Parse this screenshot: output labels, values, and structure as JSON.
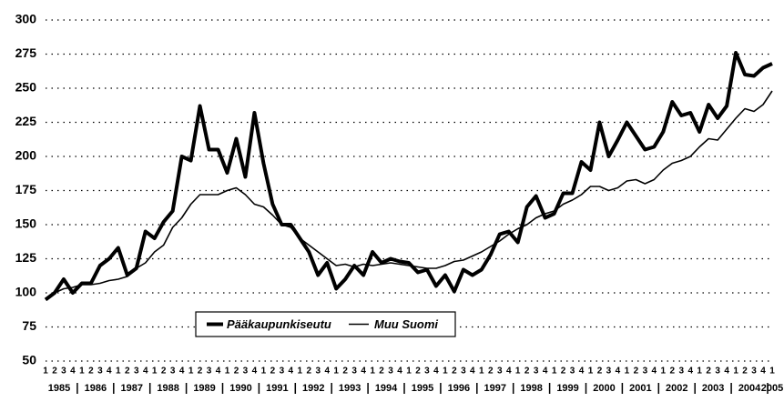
{
  "chart_data": {
    "type": "line",
    "categories": [
      "1",
      "2",
      "3",
      "4",
      "1",
      "2",
      "3",
      "4",
      "1",
      "2",
      "3",
      "4",
      "1",
      "2",
      "3",
      "4",
      "1",
      "2",
      "3",
      "4",
      "1",
      "2",
      "3",
      "4",
      "1",
      "2",
      "3",
      "4",
      "1",
      "2",
      "3",
      "4",
      "1",
      "2",
      "3",
      "4",
      "1",
      "2",
      "3",
      "4",
      "1",
      "2",
      "3",
      "4",
      "1",
      "2",
      "3",
      "4",
      "1",
      "2",
      "3",
      "4",
      "1",
      "2",
      "3",
      "4",
      "1",
      "2",
      "3",
      "4",
      "1",
      "2",
      "3",
      "4",
      "1",
      "2",
      "3",
      "4",
      "1",
      "2",
      "3",
      "4",
      "1",
      "2",
      "3",
      "4",
      "1",
      "2",
      "3",
      "4",
      "1"
    ],
    "years": [
      "1985",
      "1986",
      "1987",
      "1988",
      "1989",
      "1990",
      "1991",
      "1992",
      "1993",
      "1994",
      "1995",
      "1996",
      "1997",
      "1998",
      "1999",
      "2000",
      "2001",
      "2002",
      "2003",
      "2004",
      "2005"
    ],
    "series": [
      {
        "name": "Pääkaupunkiseutu",
        "color": "#000000",
        "values": [
          95,
          100,
          110,
          100,
          107,
          107,
          120,
          125,
          133,
          113,
          118,
          145,
          140,
          152,
          160,
          200,
          197,
          237,
          205,
          205,
          188,
          213,
          185,
          232,
          195,
          165,
          150,
          150,
          140,
          130,
          113,
          122,
          103,
          110,
          120,
          113,
          130,
          122,
          125,
          123,
          122,
          115,
          117,
          105,
          113,
          101,
          117,
          113,
          117,
          128,
          143,
          145,
          137,
          163,
          171,
          155,
          158,
          173,
          173,
          196,
          190,
          225,
          200,
          212,
          225,
          215,
          205,
          207,
          218,
          240,
          230,
          232,
          218,
          238,
          228,
          237,
          276,
          260,
          259,
          265,
          268
        ]
      },
      {
        "name": "Muu Suomi",
        "color": "#000000",
        "values": [
          96,
          100,
          103,
          104,
          106,
          106,
          107,
          109,
          110,
          112,
          118,
          122,
          130,
          135,
          148,
          155,
          165,
          172,
          172,
          172,
          175,
          177,
          172,
          165,
          163,
          157,
          150,
          148,
          140,
          135,
          130,
          125,
          120,
          121,
          119,
          121,
          120,
          121,
          122,
          121,
          120,
          119,
          118,
          118,
          120,
          123,
          124,
          127,
          130,
          134,
          138,
          143,
          147,
          150,
          155,
          158,
          160,
          165,
          168,
          172,
          178,
          178,
          175,
          177,
          182,
          183,
          180,
          183,
          190,
          195,
          197,
          200,
          207,
          213,
          212,
          220,
          228,
          235,
          233,
          238,
          248
        ]
      }
    ],
    "ylim": [
      50,
      300
    ],
    "yticks": [
      50,
      75,
      100,
      125,
      150,
      175,
      200,
      225,
      250,
      275,
      300
    ],
    "grid": true,
    "grid_style": "dotted",
    "legend": "lower center"
  }
}
